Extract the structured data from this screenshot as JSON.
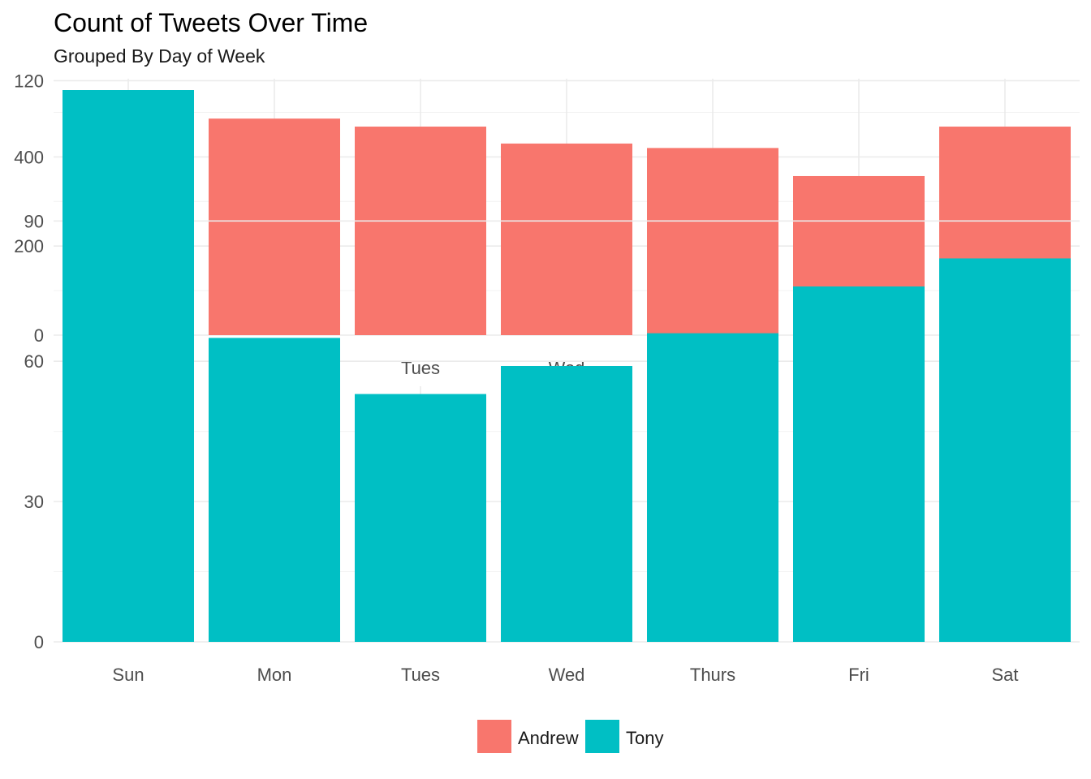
{
  "title": "Count of Tweets Over Time",
  "subtitle": "Grouped By Day of Week",
  "chart_data": [
    {
      "type": "bar",
      "categories": [
        "Sun",
        "Mon",
        "Tues",
        "Wed",
        "Thurs",
        "Fri",
        "Sat"
      ],
      "series": [
        {
          "name": "Andrew",
          "values": [
            550,
            486,
            468,
            430,
            420,
            357,
            468
          ],
          "color": "#F8766D"
        }
      ],
      "ylim": [
        0,
        550
      ],
      "yticks": [
        0,
        200,
        400
      ],
      "xlabel": "",
      "ylabel": "",
      "grid": true
    },
    {
      "type": "bar",
      "categories": [
        "Sun",
        "Mon",
        "Tues",
        "Wed",
        "Thurs",
        "Fri",
        "Sat"
      ],
      "series": [
        {
          "name": "Tony",
          "values": [
            118,
            65,
            53,
            59,
            66,
            76,
            82
          ],
          "color": "#00BFC4"
        }
      ],
      "ylim": [
        0,
        118
      ],
      "yticks": [
        0,
        30,
        60,
        90,
        120
      ],
      "xlabel": "",
      "ylabel": "",
      "grid": true
    }
  ],
  "legend": {
    "position": "bottom",
    "items": [
      {
        "label": "Andrew",
        "color": "#F8766D"
      },
      {
        "label": "Tony",
        "color": "#00BFC4"
      }
    ]
  }
}
